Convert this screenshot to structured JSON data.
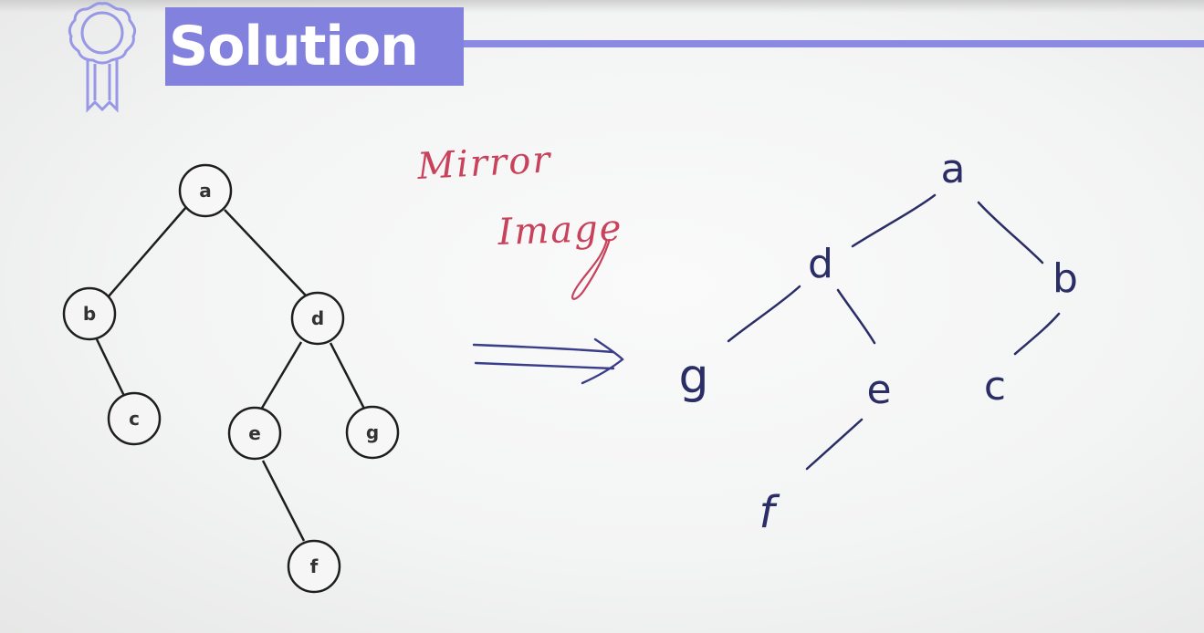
{
  "header": {
    "title": "Solution"
  },
  "annotation": {
    "line1": "Mirror",
    "line2": "Image"
  },
  "original_tree": {
    "nodes": [
      "a",
      "b",
      "c",
      "d",
      "e",
      "f",
      "g"
    ],
    "edges": [
      [
        "a",
        "b"
      ],
      [
        "a",
        "d"
      ],
      [
        "b",
        "c"
      ],
      [
        "d",
        "e"
      ],
      [
        "d",
        "g"
      ],
      [
        "e",
        "f"
      ]
    ]
  },
  "mirrored_tree": {
    "nodes": [
      "a",
      "d",
      "b",
      "g",
      "e",
      "c",
      "f"
    ],
    "edges": [
      [
        "a",
        "d"
      ],
      [
        "a",
        "b"
      ],
      [
        "d",
        "g"
      ],
      [
        "d",
        "e"
      ],
      [
        "b",
        "c"
      ],
      [
        "e",
        "f"
      ]
    ]
  },
  "colors": {
    "accent": "#8282de",
    "ink": "#2a2d66",
    "annotation": "#c9425c",
    "node_stroke": "#222222"
  },
  "icons": {
    "badge": "award-ribbon-icon",
    "arrow": "double-arrow-right-icon"
  }
}
